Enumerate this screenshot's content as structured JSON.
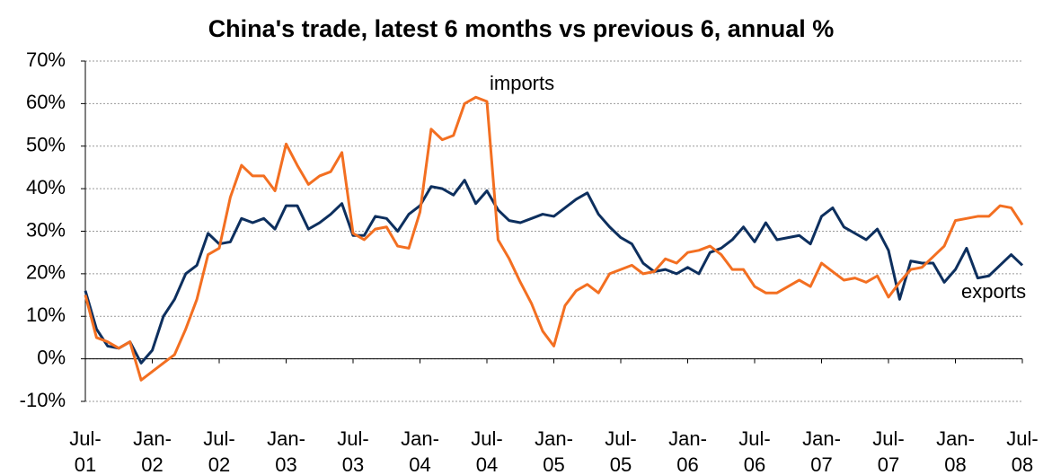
{
  "chart_data": {
    "type": "line",
    "title": "China's trade, latest 6 months vs previous 6, annual %",
    "categories": [
      "Jul-\n01",
      null,
      null,
      null,
      null,
      null,
      "Jan-\n02",
      null,
      null,
      null,
      null,
      null,
      "Jul-\n02",
      null,
      null,
      null,
      null,
      null,
      "Jan-\n03",
      null,
      null,
      null,
      null,
      null,
      "Jul-\n03",
      null,
      null,
      null,
      null,
      null,
      "Jan-\n04",
      null,
      null,
      null,
      null,
      null,
      "Jul-\n04",
      null,
      null,
      null,
      null,
      null,
      "Jan-\n05",
      null,
      null,
      null,
      null,
      null,
      "Jul-\n05",
      null,
      null,
      null,
      null,
      null,
      "Jan-\n06",
      null,
      null,
      null,
      null,
      null,
      "Jul-\n06",
      null,
      null,
      null,
      null,
      null,
      "Jan-\n07",
      null,
      null,
      null,
      null,
      null,
      "Jul-\n07",
      null,
      null,
      null,
      null,
      null,
      "Jan-\n08",
      null,
      null,
      null,
      null,
      null,
      "Jul-\n08"
    ],
    "series": [
      {
        "name": "exports",
        "color": "#0d2f5e",
        "values": [
          16,
          7,
          3,
          2.5,
          4,
          -1,
          2,
          10,
          14,
          20,
          22,
          29.5,
          27,
          27.5,
          33,
          32,
          33,
          30.5,
          36,
          36,
          30.5,
          32,
          34,
          36.5,
          29,
          29,
          33.5,
          33,
          30,
          34,
          36,
          40.5,
          40,
          38.5,
          42,
          36.5,
          39.5,
          35,
          32.5,
          32,
          33,
          34,
          33.5,
          35.5,
          37.5,
          39,
          34,
          31,
          28.5,
          27,
          22.5,
          20.5,
          21,
          20,
          21.5,
          20,
          25,
          26,
          28,
          31,
          27.5,
          32,
          28,
          28.5,
          29,
          27,
          33.5,
          35.5,
          31,
          29.5,
          28,
          30.5,
          25.5,
          14,
          23,
          22.5,
          22.5,
          18,
          21,
          26,
          19,
          19.5,
          22,
          24.5,
          22
        ]
      },
      {
        "name": "imports",
        "color": "#f36f21",
        "values": [
          15,
          5,
          4,
          2.5,
          4,
          -5,
          -3,
          -1,
          1,
          7,
          14,
          24.5,
          26,
          38,
          45.5,
          43,
          43,
          39.5,
          50.5,
          45.5,
          41,
          43,
          44,
          48.5,
          29.5,
          28,
          30.5,
          31,
          26.5,
          26,
          34.5,
          54,
          51.5,
          52.5,
          60,
          61.5,
          60.5,
          28,
          23.5,
          18,
          13,
          6.5,
          3,
          12.5,
          16,
          17.5,
          15.5,
          20,
          21,
          22,
          20,
          20.5,
          23.5,
          22.5,
          25,
          25.5,
          26.5,
          24.5,
          21,
          21,
          17,
          15.5,
          15.5,
          17,
          18.5,
          17,
          22.5,
          20.5,
          18.5,
          19,
          18,
          19.5,
          14.5,
          18,
          21,
          21.5,
          24,
          26.5,
          32.5,
          33,
          33.5,
          33.5,
          36,
          35.5,
          31.5
        ]
      }
    ],
    "ylim": [
      -10,
      70
    ],
    "yticks": [
      {
        "value": -10,
        "label": "-10%"
      },
      {
        "value": 0,
        "label": "0%"
      },
      {
        "value": 10,
        "label": "10%"
      },
      {
        "value": 20,
        "label": "20%"
      },
      {
        "value": 30,
        "label": "30%"
      },
      {
        "value": 40,
        "label": "40%"
      },
      {
        "value": 50,
        "label": "50%"
      },
      {
        "value": 60,
        "label": "60%"
      },
      {
        "value": 70,
        "label": "70%"
      }
    ],
    "grid": true
  }
}
